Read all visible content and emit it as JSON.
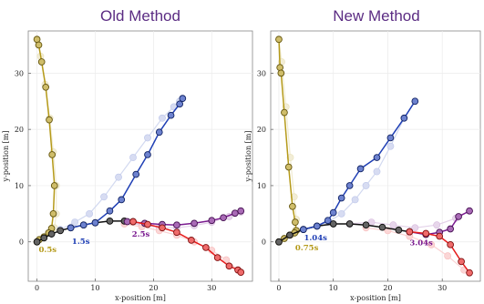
{
  "chart_data": [
    {
      "type": "line",
      "title": "Old Method",
      "xlabel": "x-position [m]",
      "ylabel": "y-position [m]",
      "xlim": [
        -1.5,
        37
      ],
      "ylim": [
        -7,
        37.5
      ],
      "xticks": [
        0,
        10,
        20,
        30
      ],
      "yticks": [
        0,
        10,
        20,
        30
      ],
      "grid": true,
      "series": [
        {
          "color": "#b59a19",
          "ghost": false,
          "x": [
            0,
            0.3,
            0.8,
            1.5,
            2.1,
            2.6,
            3.0,
            2.8,
            2.5,
            2.0,
            1.2,
            0.4,
            0
          ],
          "y": [
            36,
            35,
            32,
            27.5,
            21.7,
            15.5,
            10,
            5,
            2.4,
            1.6,
            0.9,
            0.4,
            0
          ]
        },
        {
          "color": "#111111",
          "ghost": false,
          "x": [
            0,
            1.2,
            2.5,
            4.0,
            5.8,
            8.0,
            10.0,
            12.5,
            15.0,
            16.5
          ],
          "y": [
            0,
            0.7,
            1.4,
            2.0,
            2.5,
            3.0,
            3.4,
            3.7,
            3.7,
            3.6
          ]
        },
        {
          "color": "#1f3fb5",
          "ghost": false,
          "x": [
            5.8,
            8.0,
            10.0,
            12.5,
            14.5,
            17.0,
            19.0,
            21.0,
            23.0,
            24.5,
            25.0
          ],
          "y": [
            2.5,
            3.0,
            3.4,
            5.5,
            7.5,
            12.0,
            15.5,
            19.5,
            22.5,
            24.5,
            25.5
          ]
        },
        {
          "color": "#7a1a8f",
          "ghost": false,
          "x": [
            15.5,
            18.5,
            21.5,
            24.0,
            27.0,
            30.0,
            32.0,
            34.0,
            35.0
          ],
          "y": [
            3.6,
            3.3,
            3.1,
            3.0,
            3.3,
            3.8,
            4.3,
            5.1,
            5.5
          ]
        },
        {
          "color": "#e61c1c",
          "ghost": false,
          "x": [
            16.5,
            19.0,
            21.5,
            24.0,
            26.5,
            29.0,
            31.0,
            33.0,
            34.5,
            35.0
          ],
          "y": [
            3.6,
            3.1,
            2.5,
            1.7,
            0.3,
            -1.0,
            -2.8,
            -4.3,
            -5.0,
            -5.4
          ]
        },
        {
          "color": "#b59a19",
          "ghost": true,
          "x": [
            0,
            0.6,
            1.4,
            2.2,
            2.8,
            3.3,
            3.3,
            3.0,
            2.5
          ],
          "y": [
            36,
            33,
            28,
            22,
            16,
            10,
            5,
            2.5,
            1.5
          ]
        },
        {
          "color": "#1f3fb5",
          "ghost": true,
          "x": [
            4.0,
            6.5,
            9.0,
            11.5,
            14.0,
            16.5,
            19.0,
            21.5,
            23.5,
            24.5
          ],
          "y": [
            2.2,
            3.5,
            5.0,
            8.0,
            11.5,
            15.0,
            18.5,
            22.0,
            24.0,
            25.0
          ]
        },
        {
          "color": "#7a1a8f",
          "ghost": true,
          "x": [
            15.0,
            18.0,
            21.0,
            24.0,
            27.0,
            30.0,
            33.0,
            35.0
          ],
          "y": [
            3.4,
            3.0,
            2.6,
            2.5,
            2.9,
            3.5,
            4.5,
            5.3
          ]
        },
        {
          "color": "#e61c1c",
          "ghost": true,
          "x": [
            15.0,
            18.0,
            21.0,
            24.0,
            27.0,
            30.0,
            32.5,
            34.5
          ],
          "y": [
            3.2,
            2.7,
            2.0,
            1.2,
            0.0,
            -1.5,
            -3.2,
            -5.0
          ]
        }
      ],
      "annotations": [
        {
          "text": "0.5s",
          "x": 0.3,
          "y": -1.3,
          "color": "#b59a19"
        },
        {
          "text": "1.5s",
          "x": 6.0,
          "y": 0.1,
          "color": "#1f3fb5"
        },
        {
          "text": "2.5s",
          "x": 16.3,
          "y": 1.4,
          "color": "#7a1a8f"
        }
      ]
    },
    {
      "type": "line",
      "title": "New Method",
      "xlabel": "x-position [m]",
      "ylabel": "y-position [m]",
      "xlim": [
        -1.5,
        37
      ],
      "ylim": [
        -7,
        37.5
      ],
      "xticks": [
        0,
        10,
        20,
        30
      ],
      "yticks": [
        0,
        10,
        20,
        30
      ],
      "grid": true,
      "series": [
        {
          "color": "#b59a19",
          "ghost": false,
          "x": [
            0,
            0.2,
            0.4,
            1.0,
            1.8,
            2.5,
            3.0,
            3.2,
            2.9,
            2.0,
            1.0,
            0
          ],
          "y": [
            36,
            31,
            30,
            23,
            13.3,
            6.3,
            3.5,
            2.0,
            1.6,
            1.2,
            0.6,
            0
          ]
        },
        {
          "color": "#111111",
          "ghost": false,
          "x": [
            0,
            2.0,
            4.5,
            7.0,
            10.0,
            13.0,
            16.0,
            19.0,
            22.0,
            24.0
          ],
          "y": [
            0,
            1.2,
            2.2,
            2.8,
            3.2,
            3.2,
            3.0,
            2.6,
            2.1,
            1.8
          ]
        },
        {
          "color": "#1f3fb5",
          "ghost": false,
          "x": [
            4.5,
            7.0,
            9.0,
            10.0,
            11.5,
            13.0,
            15.0,
            18.0,
            20.5,
            23.0,
            25.0
          ],
          "y": [
            2.2,
            2.8,
            3.8,
            5.2,
            7.8,
            10.0,
            13.0,
            15.0,
            18.5,
            22.0,
            25.0
          ]
        },
        {
          "color": "#7a1a8f",
          "ghost": false,
          "x": [
            24.0,
            27.0,
            29.5,
            31.5,
            33.0,
            35.0
          ],
          "y": [
            1.8,
            1.3,
            1.7,
            2.3,
            4.5,
            5.5
          ]
        },
        {
          "color": "#e61c1c",
          "ghost": false,
          "x": [
            24.0,
            27.0,
            29.5,
            31.5,
            33.5,
            35.0
          ],
          "y": [
            1.8,
            1.5,
            1.0,
            -0.5,
            -3.5,
            -5.5
          ]
        },
        {
          "color": "#b59a19",
          "ghost": true,
          "x": [
            0,
            0.5,
            1.3,
            2.1,
            2.8,
            3.2,
            3.0,
            2.4
          ],
          "y": [
            36,
            32,
            24,
            15,
            8,
            4,
            2,
            1.3
          ]
        },
        {
          "color": "#1f3fb5",
          "ghost": true,
          "x": [
            7.0,
            9.0,
            11.5,
            14.0,
            16.0,
            18.0,
            20.5,
            23.0
          ],
          "y": [
            2.8,
            3.5,
            5.0,
            7.5,
            10.0,
            12.5,
            17.0,
            22.0
          ]
        },
        {
          "color": "#7a1a8f",
          "ghost": true,
          "x": [
            13.0,
            17.0,
            21.0,
            25.0,
            29.0,
            32.5,
            35.0
          ],
          "y": [
            3.2,
            3.5,
            3.0,
            2.5,
            3.0,
            4.2,
            5.5
          ]
        },
        {
          "color": "#e61c1c",
          "ghost": true,
          "x": [
            16.0,
            20.0,
            24.0,
            28.0,
            31.0,
            34.0
          ],
          "y": [
            2.5,
            2.0,
            1.0,
            -0.5,
            -2.5,
            -5.0
          ]
        }
      ],
      "annotations": [
        {
          "text": "0.75s",
          "x": 3.0,
          "y": -1.0,
          "color": "#b59a19"
        },
        {
          "text": "1.04s",
          "x": 4.6,
          "y": 0.8,
          "color": "#1f3fb5"
        },
        {
          "text": "3.04s",
          "x": 24.0,
          "y": -0.1,
          "color": "#7a1a8f"
        }
      ]
    }
  ]
}
